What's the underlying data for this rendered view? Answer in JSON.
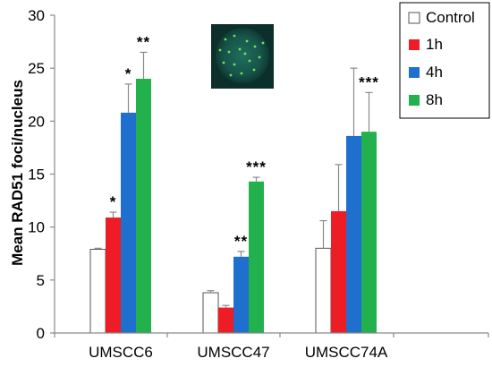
{
  "chart_data": {
    "type": "bar",
    "ylabel": "Mean RAD51 foci/nucleus",
    "xlabel": "",
    "ylim": [
      0,
      30
    ],
    "yticks": [
      0,
      5,
      10,
      15,
      20,
      25,
      30
    ],
    "grid": false,
    "legend_position": "top-right",
    "categories": [
      "UMSCC6",
      "UMSCC47",
      "UMSCC74A"
    ],
    "series": [
      {
        "name": "Control",
        "color": "#ffffff",
        "values": [
          7.9,
          3.8,
          8.0
        ],
        "errors": [
          0.1,
          0.2,
          2.6
        ]
      },
      {
        "name": "1h",
        "color": "#ee1c24",
        "values": [
          10.9,
          2.4,
          11.5
        ],
        "errors": [
          0.5,
          0.2,
          4.4
        ]
      },
      {
        "name": "4h",
        "color": "#1f6fcf",
        "values": [
          20.8,
          7.2,
          18.6
        ],
        "errors": [
          2.7,
          0.5,
          6.4
        ]
      },
      {
        "name": "8h",
        "color": "#22b14c",
        "values": [
          24.0,
          14.3,
          19.0
        ],
        "errors": [
          2.5,
          0.4,
          3.7
        ]
      }
    ],
    "annotations": [
      {
        "category": 0,
        "series": 1,
        "text": "*"
      },
      {
        "category": 0,
        "series": 2,
        "text": "*"
      },
      {
        "category": 0,
        "series": 3,
        "text": "**"
      },
      {
        "category": 1,
        "series": 2,
        "text": "**"
      },
      {
        "category": 1,
        "series": 3,
        "text": "***"
      },
      {
        "category": 2,
        "series": 3,
        "text": "***"
      }
    ],
    "inset_image": "fluorescence-nucleus-micrograph"
  }
}
